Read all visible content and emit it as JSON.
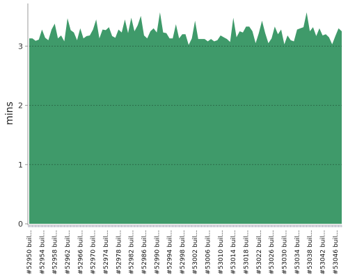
{
  "chart_data": {
    "type": "area",
    "ylabel": "mins",
    "xlabel": "",
    "ylim": [
      0,
      3.72
    ],
    "yticks": [
      0,
      1,
      2,
      3
    ],
    "grid": true,
    "color": "#3f9a6a",
    "tick_labels": [
      "#52950 buil...",
      "#52954 buil...",
      "#52958 buil...",
      "#52962 buil...",
      "#52966 buil...",
      "#52970 buil...",
      "#52974 buil...",
      "#52978 buil...",
      "#52982 buil...",
      "#52986 buil...",
      "#52990 buil...",
      "#52994 buil...",
      "#52998 buil...",
      "#53002 buil...",
      "#53006 buil...",
      "#53010 buil...",
      "#53014 buil...",
      "#53018 buil...",
      "#53022 buil...",
      "#53026 buil...",
      "#53030 buil...",
      "#53034 buil...",
      "#53038 buil...",
      "#53042 buil...",
      "#53046 buil..."
    ],
    "tick_every": 4,
    "values": [
      3.13,
      3.13,
      3.09,
      3.11,
      3.28,
      3.14,
      3.1,
      3.28,
      3.38,
      3.13,
      3.18,
      3.08,
      3.47,
      3.27,
      3.23,
      3.1,
      3.3,
      3.13,
      3.17,
      3.18,
      3.28,
      3.45,
      3.13,
      3.28,
      3.27,
      3.32,
      3.17,
      3.14,
      3.28,
      3.23,
      3.45,
      3.22,
      3.48,
      3.25,
      3.35,
      3.51,
      3.18,
      3.13,
      3.25,
      3.3,
      3.23,
      3.57,
      3.23,
      3.22,
      3.13,
      3.13,
      3.37,
      3.13,
      3.2,
      3.2,
      3.02,
      3.13,
      3.43,
      3.12,
      3.12,
      3.12,
      3.08,
      3.12,
      3.08,
      3.1,
      3.18,
      3.15,
      3.12,
      3.07,
      3.48,
      3.15,
      3.25,
      3.23,
      3.33,
      3.33,
      3.25,
      3.05,
      3.22,
      3.43,
      3.22,
      3.05,
      3.13,
      3.33,
      3.2,
      3.28,
      3.03,
      3.18,
      3.1,
      3.08,
      3.28,
      3.3,
      3.32,
      3.57,
      3.25,
      3.32,
      3.17,
      3.3,
      3.18,
      3.2,
      3.15,
      3.03,
      3.17,
      3.3,
      3.25
    ]
  }
}
